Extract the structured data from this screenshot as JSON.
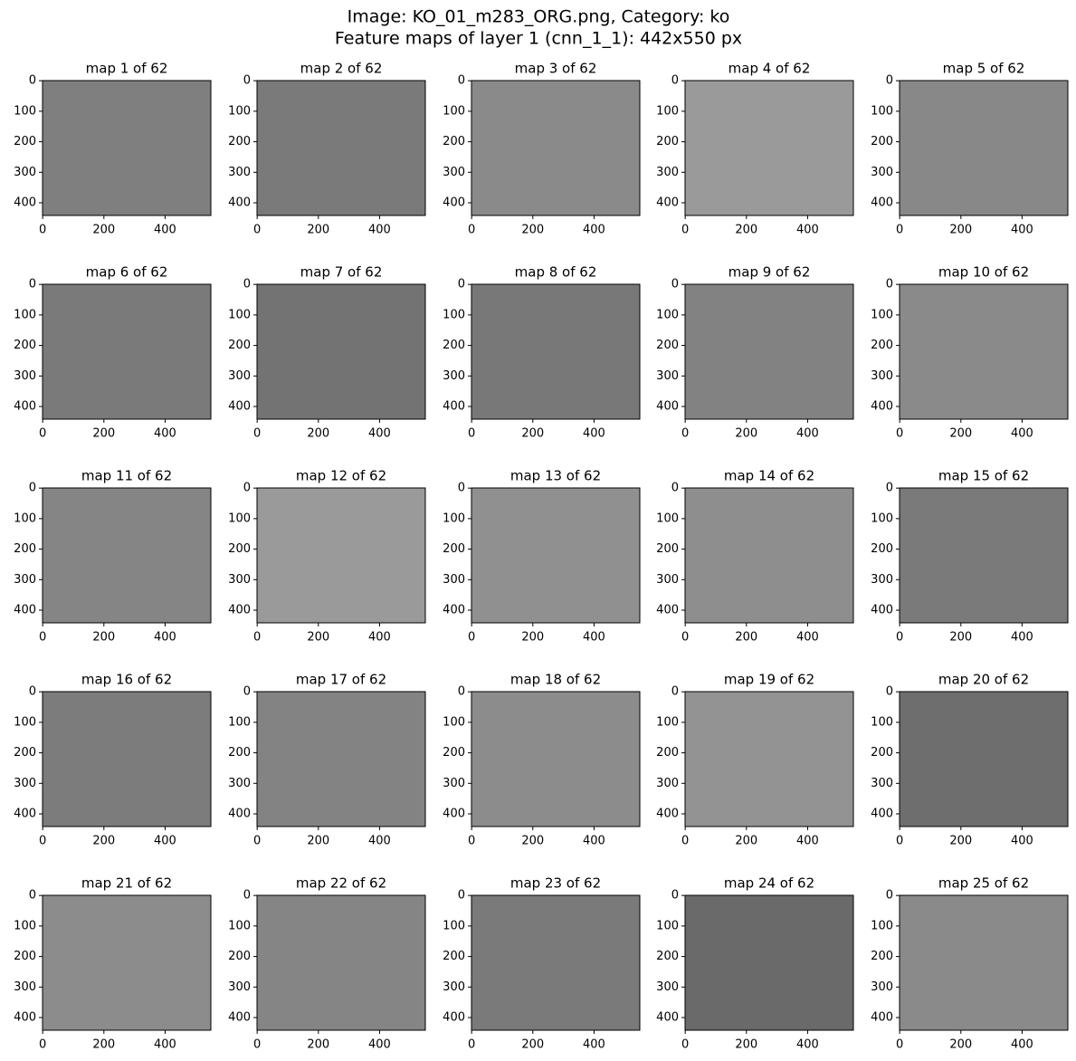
{
  "suptitle": [
    "Image: KO_01_m283_ORG.png, Category: ko",
    "Feature maps of layer 1 (cnn_1_1): 442x550 px"
  ],
  "chart_data": [
    {
      "type": "image",
      "title": "map 1 of 62",
      "color": "#7f7f7f",
      "xlim": [
        -0.5,
        549.5
      ],
      "ylim": [
        441.5,
        -0.5
      ],
      "xticks": [
        0,
        200,
        400
      ],
      "yticks": [
        0,
        100,
        200,
        300,
        400
      ]
    },
    {
      "type": "image",
      "title": "map 2 of 62",
      "color": "#7a7a7a",
      "xlim": [
        -0.5,
        549.5
      ],
      "ylim": [
        441.5,
        -0.5
      ],
      "xticks": [
        0,
        200,
        400
      ],
      "yticks": [
        0,
        100,
        200,
        300,
        400
      ]
    },
    {
      "type": "image",
      "title": "map 3 of 62",
      "color": "#8a8a8a",
      "xlim": [
        -0.5,
        549.5
      ],
      "ylim": [
        441.5,
        -0.5
      ],
      "xticks": [
        0,
        200,
        400
      ],
      "yticks": [
        0,
        100,
        200,
        300,
        400
      ]
    },
    {
      "type": "image",
      "title": "map 4 of 62",
      "color": "#9a9a9a",
      "xlim": [
        -0.5,
        549.5
      ],
      "ylim": [
        441.5,
        -0.5
      ],
      "xticks": [
        0,
        200,
        400
      ],
      "yticks": [
        0,
        100,
        200,
        300,
        400
      ]
    },
    {
      "type": "image",
      "title": "map 5 of 62",
      "color": "#888888",
      "xlim": [
        -0.5,
        549.5
      ],
      "ylim": [
        441.5,
        -0.5
      ],
      "xticks": [
        0,
        200,
        400
      ],
      "yticks": [
        0,
        100,
        200,
        300,
        400
      ]
    },
    {
      "type": "image",
      "title": "map 6 of 62",
      "color": "#7a7a7a",
      "xlim": [
        -0.5,
        549.5
      ],
      "ylim": [
        441.5,
        -0.5
      ],
      "xticks": [
        0,
        200,
        400
      ],
      "yticks": [
        0,
        100,
        200,
        300,
        400
      ]
    },
    {
      "type": "image",
      "title": "map 7 of 62",
      "color": "#737373",
      "xlim": [
        -0.5,
        549.5
      ],
      "ylim": [
        441.5,
        -0.5
      ],
      "xticks": [
        0,
        200,
        400
      ],
      "yticks": [
        0,
        100,
        200,
        300,
        400
      ]
    },
    {
      "type": "image",
      "title": "map 8 of 62",
      "color": "#787878",
      "xlim": [
        -0.5,
        549.5
      ],
      "ylim": [
        441.5,
        -0.5
      ],
      "xticks": [
        0,
        200,
        400
      ],
      "yticks": [
        0,
        100,
        200,
        300,
        400
      ]
    },
    {
      "type": "image",
      "title": "map 9 of 62",
      "color": "#828282",
      "xlim": [
        -0.5,
        549.5
      ],
      "ylim": [
        441.5,
        -0.5
      ],
      "xticks": [
        0,
        200,
        400
      ],
      "yticks": [
        0,
        100,
        200,
        300,
        400
      ]
    },
    {
      "type": "image",
      "title": "map 10 of 62",
      "color": "#8a8a8a",
      "xlim": [
        -0.5,
        549.5
      ],
      "ylim": [
        441.5,
        -0.5
      ],
      "xticks": [
        0,
        200,
        400
      ],
      "yticks": [
        0,
        100,
        200,
        300,
        400
      ]
    },
    {
      "type": "image",
      "title": "map 11 of 62",
      "color": "#858585",
      "xlim": [
        -0.5,
        549.5
      ],
      "ylim": [
        441.5,
        -0.5
      ],
      "xticks": [
        0,
        200,
        400
      ],
      "yticks": [
        0,
        100,
        200,
        300,
        400
      ]
    },
    {
      "type": "image",
      "title": "map 12 of 62",
      "color": "#9a9a9a",
      "xlim": [
        -0.5,
        549.5
      ],
      "ylim": [
        441.5,
        -0.5
      ],
      "xticks": [
        0,
        200,
        400
      ],
      "yticks": [
        0,
        100,
        200,
        300,
        400
      ]
    },
    {
      "type": "image",
      "title": "map 13 of 62",
      "color": "#909090",
      "xlim": [
        -0.5,
        549.5
      ],
      "ylim": [
        441.5,
        -0.5
      ],
      "xticks": [
        0,
        200,
        400
      ],
      "yticks": [
        0,
        100,
        200,
        300,
        400
      ]
    },
    {
      "type": "image",
      "title": "map 14 of 62",
      "color": "#8e8e8e",
      "xlim": [
        -0.5,
        549.5
      ],
      "ylim": [
        441.5,
        -0.5
      ],
      "xticks": [
        0,
        200,
        400
      ],
      "yticks": [
        0,
        100,
        200,
        300,
        400
      ]
    },
    {
      "type": "image",
      "title": "map 15 of 62",
      "color": "#7a7a7a",
      "xlim": [
        -0.5,
        549.5
      ],
      "ylim": [
        441.5,
        -0.5
      ],
      "xticks": [
        0,
        200,
        400
      ],
      "yticks": [
        0,
        100,
        200,
        300,
        400
      ]
    },
    {
      "type": "image",
      "title": "map 16 of 62",
      "color": "#7c7c7c",
      "xlim": [
        -0.5,
        549.5
      ],
      "ylim": [
        441.5,
        -0.5
      ],
      "xticks": [
        0,
        200,
        400
      ],
      "yticks": [
        0,
        100,
        200,
        300,
        400
      ]
    },
    {
      "type": "image",
      "title": "map 17 of 62",
      "color": "#838383",
      "xlim": [
        -0.5,
        549.5
      ],
      "ylim": [
        441.5,
        -0.5
      ],
      "xticks": [
        0,
        200,
        400
      ],
      "yticks": [
        0,
        100,
        200,
        300,
        400
      ]
    },
    {
      "type": "image",
      "title": "map 18 of 62",
      "color": "#8c8c8c",
      "xlim": [
        -0.5,
        549.5
      ],
      "ylim": [
        441.5,
        -0.5
      ],
      "xticks": [
        0,
        200,
        400
      ],
      "yticks": [
        0,
        100,
        200,
        300,
        400
      ]
    },
    {
      "type": "image",
      "title": "map 19 of 62",
      "color": "#939393",
      "xlim": [
        -0.5,
        549.5
      ],
      "ylim": [
        441.5,
        -0.5
      ],
      "xticks": [
        0,
        200,
        400
      ],
      "yticks": [
        0,
        100,
        200,
        300,
        400
      ]
    },
    {
      "type": "image",
      "title": "map 20 of 62",
      "color": "#6e6e6e",
      "xlim": [
        -0.5,
        549.5
      ],
      "ylim": [
        441.5,
        -0.5
      ],
      "xticks": [
        0,
        200,
        400
      ],
      "yticks": [
        0,
        100,
        200,
        300,
        400
      ]
    },
    {
      "type": "image",
      "title": "map 21 of 62",
      "color": "#8c8c8c",
      "xlim": [
        -0.5,
        549.5
      ],
      "ylim": [
        441.5,
        -0.5
      ],
      "xticks": [
        0,
        200,
        400
      ],
      "yticks": [
        0,
        100,
        200,
        300,
        400
      ]
    },
    {
      "type": "image",
      "title": "map 22 of 62",
      "color": "#858585",
      "xlim": [
        -0.5,
        549.5
      ],
      "ylim": [
        441.5,
        -0.5
      ],
      "xticks": [
        0,
        200,
        400
      ],
      "yticks": [
        0,
        100,
        200,
        300,
        400
      ]
    },
    {
      "type": "image",
      "title": "map 23 of 62",
      "color": "#7a7a7a",
      "xlim": [
        -0.5,
        549.5
      ],
      "ylim": [
        441.5,
        -0.5
      ],
      "xticks": [
        0,
        200,
        400
      ],
      "yticks": [
        0,
        100,
        200,
        300,
        400
      ]
    },
    {
      "type": "image",
      "title": "map 24 of 62",
      "color": "#6a6a6a",
      "xlim": [
        -0.5,
        549.5
      ],
      "ylim": [
        441.5,
        -0.5
      ],
      "xticks": [
        0,
        200,
        400
      ],
      "yticks": [
        0,
        100,
        200,
        300,
        400
      ]
    },
    {
      "type": "image",
      "title": "map 25 of 62",
      "color": "#8a8a8a",
      "xlim": [
        -0.5,
        549.5
      ],
      "ylim": [
        441.5,
        -0.5
      ],
      "xticks": [
        0,
        200,
        400
      ],
      "yticks": [
        0,
        100,
        200,
        300,
        400
      ]
    }
  ]
}
